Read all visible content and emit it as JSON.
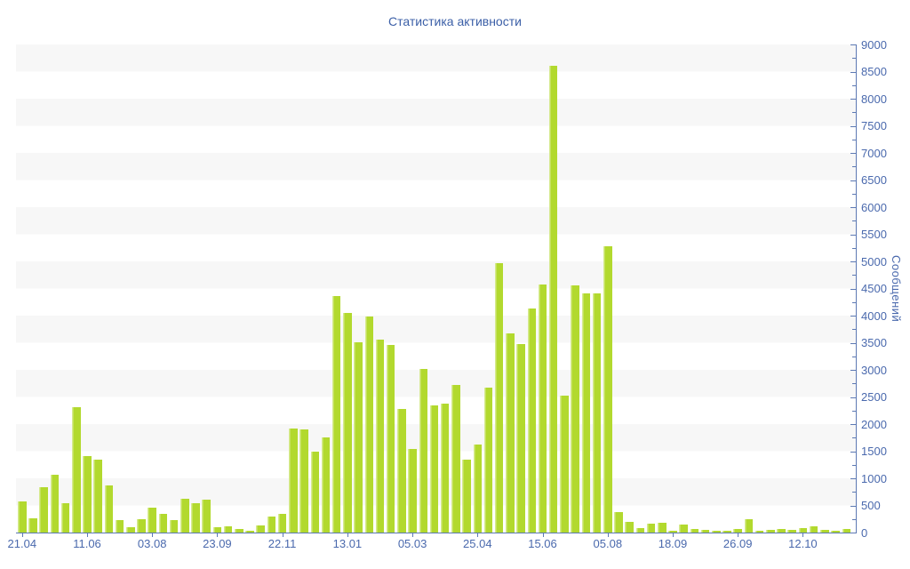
{
  "title": "Статистика активности",
  "colors": {
    "bar": "#b2d92e",
    "bar_edge_highlight": "#d6ea8e",
    "axis_line": "#5d79b3",
    "tick_label": "#4a69ad",
    "title_text": "#3b5fa7",
    "stripe": "#f7f7f7",
    "background": "#ffffff"
  },
  "chart_data": {
    "type": "bar",
    "title": "Статистика активности",
    "xlabel": "",
    "ylabel": "Сообщений",
    "ylim": [
      0,
      9000
    ],
    "y_label_step": 500,
    "y_minor_step": 250,
    "grid": "striped-bands",
    "legend": "none",
    "y_axis_side": "right",
    "x_tick_labels": [
      "21.04",
      "11.06",
      "03.08",
      "23.09",
      "22.11",
      "13.01",
      "05.03",
      "25.04",
      "15.06",
      "05.08",
      "18.09",
      "26.09",
      "12.10"
    ],
    "x_tick_indices": [
      0,
      6,
      12,
      18,
      24,
      30,
      36,
      42,
      48,
      54,
      60,
      66,
      72
    ],
    "values": [
      570,
      270,
      830,
      1070,
      540,
      2310,
      1410,
      1340,
      870,
      230,
      100,
      240,
      460,
      340,
      230,
      620,
      550,
      610,
      100,
      110,
      70,
      40,
      130,
      300,
      340,
      1920,
      1910,
      1500,
      1760,
      4360,
      4050,
      3510,
      3980,
      3560,
      3460,
      2280,
      1540,
      3020,
      2350,
      2370,
      2730,
      1350,
      1620,
      2670,
      4970,
      3670,
      3470,
      4130,
      4580,
      8600,
      2530,
      4560,
      4410,
      4410,
      5280,
      370,
      200,
      90,
      160,
      180,
      40,
      150,
      70,
      50,
      40,
      30,
      70,
      250,
      40,
      50,
      70,
      50,
      90,
      120,
      50,
      40,
      60
    ]
  }
}
